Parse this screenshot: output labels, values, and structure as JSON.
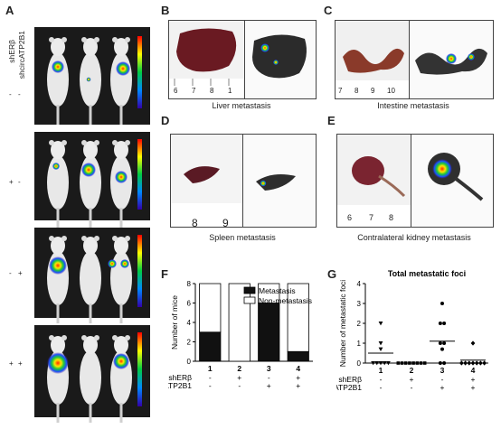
{
  "panels": {
    "A": {
      "label": "A",
      "row_labels": [
        "shERβ",
        "shcircATP2B1"
      ],
      "signs": [
        [
          "-",
          "-"
        ],
        [
          "+",
          "-"
        ],
        [
          "-",
          "+"
        ],
        [
          "+",
          "+"
        ]
      ]
    },
    "B": {
      "label": "B",
      "caption": "Liver metastasis",
      "ruler": [
        "6",
        "7",
        "8",
        "1"
      ]
    },
    "C": {
      "label": "C",
      "caption": "Intestine metastasis",
      "ruler": [
        "7",
        "8",
        "9",
        "10"
      ]
    },
    "D": {
      "label": "D",
      "caption": "Spleen metastasis",
      "ruler": [
        "8",
        "9"
      ]
    },
    "E": {
      "label": "E",
      "caption": "Contralateral kidney metastasis",
      "ruler": [
        "6",
        "7",
        "8"
      ]
    },
    "F": {
      "label": "F"
    },
    "G": {
      "label": "G"
    }
  },
  "chart_data": [
    {
      "type": "bar",
      "panel": "F",
      "ylabel": "Number of mice",
      "ylim": [
        0,
        8
      ],
      "yticks": [
        0,
        2,
        4,
        6,
        8
      ],
      "categories": [
        "1",
        "2",
        "3",
        "4"
      ],
      "series": [
        {
          "name": "Metastasis",
          "color": "#111111",
          "values": [
            3,
            0,
            6,
            1
          ]
        },
        {
          "name": "Non-metastasis",
          "color": "#ffffff",
          "values": [
            5,
            8,
            2,
            7
          ]
        }
      ],
      "legend_placement": "top-right",
      "group_rows": [
        {
          "label": "shERβ",
          "signs": [
            "-",
            "+",
            "-",
            "+"
          ]
        },
        {
          "label": "shcircATP2B1",
          "signs": [
            "-",
            "-",
            "+",
            "+"
          ]
        }
      ]
    },
    {
      "type": "scatter",
      "panel": "G",
      "title": "Total metastatic foci",
      "ylabel": "Number of metastatic foci",
      "ylim": [
        0,
        4
      ],
      "yticks": [
        0,
        1,
        2,
        3,
        4
      ],
      "categories": [
        "1",
        "2",
        "3",
        "4"
      ],
      "groups": [
        {
          "x": "1",
          "marker": "triangle",
          "values": [
            2,
            1,
            0.7,
            0,
            0,
            0,
            0,
            0
          ],
          "mean": 0.5
        },
        {
          "x": "2",
          "marker": "square",
          "values": [
            0,
            0,
            0,
            0,
            0,
            0,
            0,
            0
          ],
          "mean": 0
        },
        {
          "x": "3",
          "marker": "circle",
          "values": [
            3,
            2,
            2,
            1,
            1,
            0.7,
            0,
            0
          ],
          "mean": 1.1
        },
        {
          "x": "4",
          "marker": "diamond",
          "values": [
            1,
            0,
            0,
            0,
            0,
            0,
            0,
            0
          ],
          "mean": 0.15
        }
      ],
      "group_rows": [
        {
          "label": "shERβ",
          "signs": [
            "-",
            "+",
            "-",
            "+"
          ]
        },
        {
          "label": "shcircATP2B1",
          "signs": [
            "-",
            "-",
            "+",
            "+"
          ]
        }
      ]
    }
  ]
}
